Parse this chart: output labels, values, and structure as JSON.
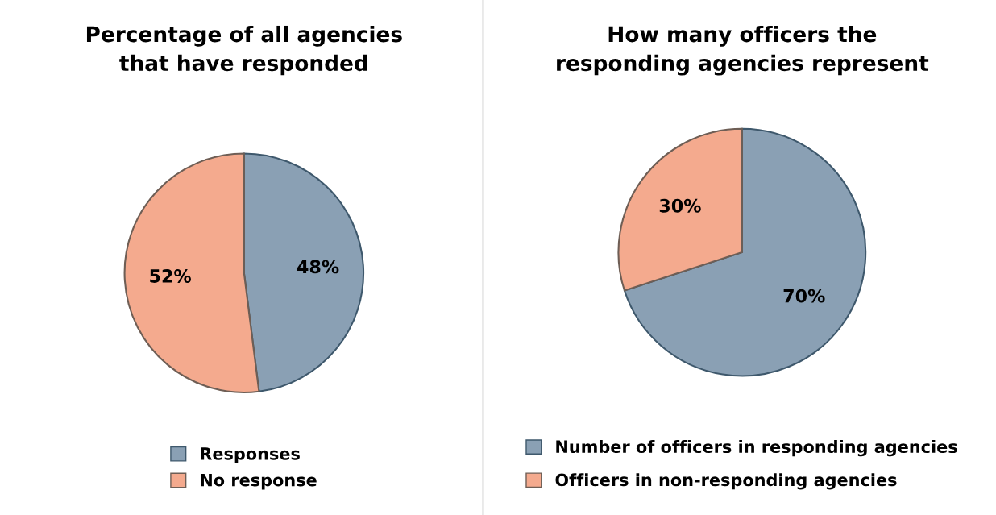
{
  "chart_data": [
    {
      "type": "pie",
      "title": "Percentage of all agencies\nthat have responded",
      "categories": [
        "Responses",
        "No response"
      ],
      "values": [
        48,
        52
      ],
      "colors": [
        "#8aa0b4",
        "#f4aa8e"
      ],
      "value_labels": [
        "48%",
        "52%"
      ],
      "legend": "bottom"
    },
    {
      "type": "pie",
      "title": "How many officers the\nresponding agencies represent",
      "categories": [
        "Number of officers in responding agencies",
        "Officers in non-responding agencies"
      ],
      "values": [
        70,
        30
      ],
      "colors": [
        "#8aa0b4",
        "#f4aa8e"
      ],
      "value_labels": [
        "70%",
        "30%"
      ],
      "legend": "bottom"
    }
  ]
}
